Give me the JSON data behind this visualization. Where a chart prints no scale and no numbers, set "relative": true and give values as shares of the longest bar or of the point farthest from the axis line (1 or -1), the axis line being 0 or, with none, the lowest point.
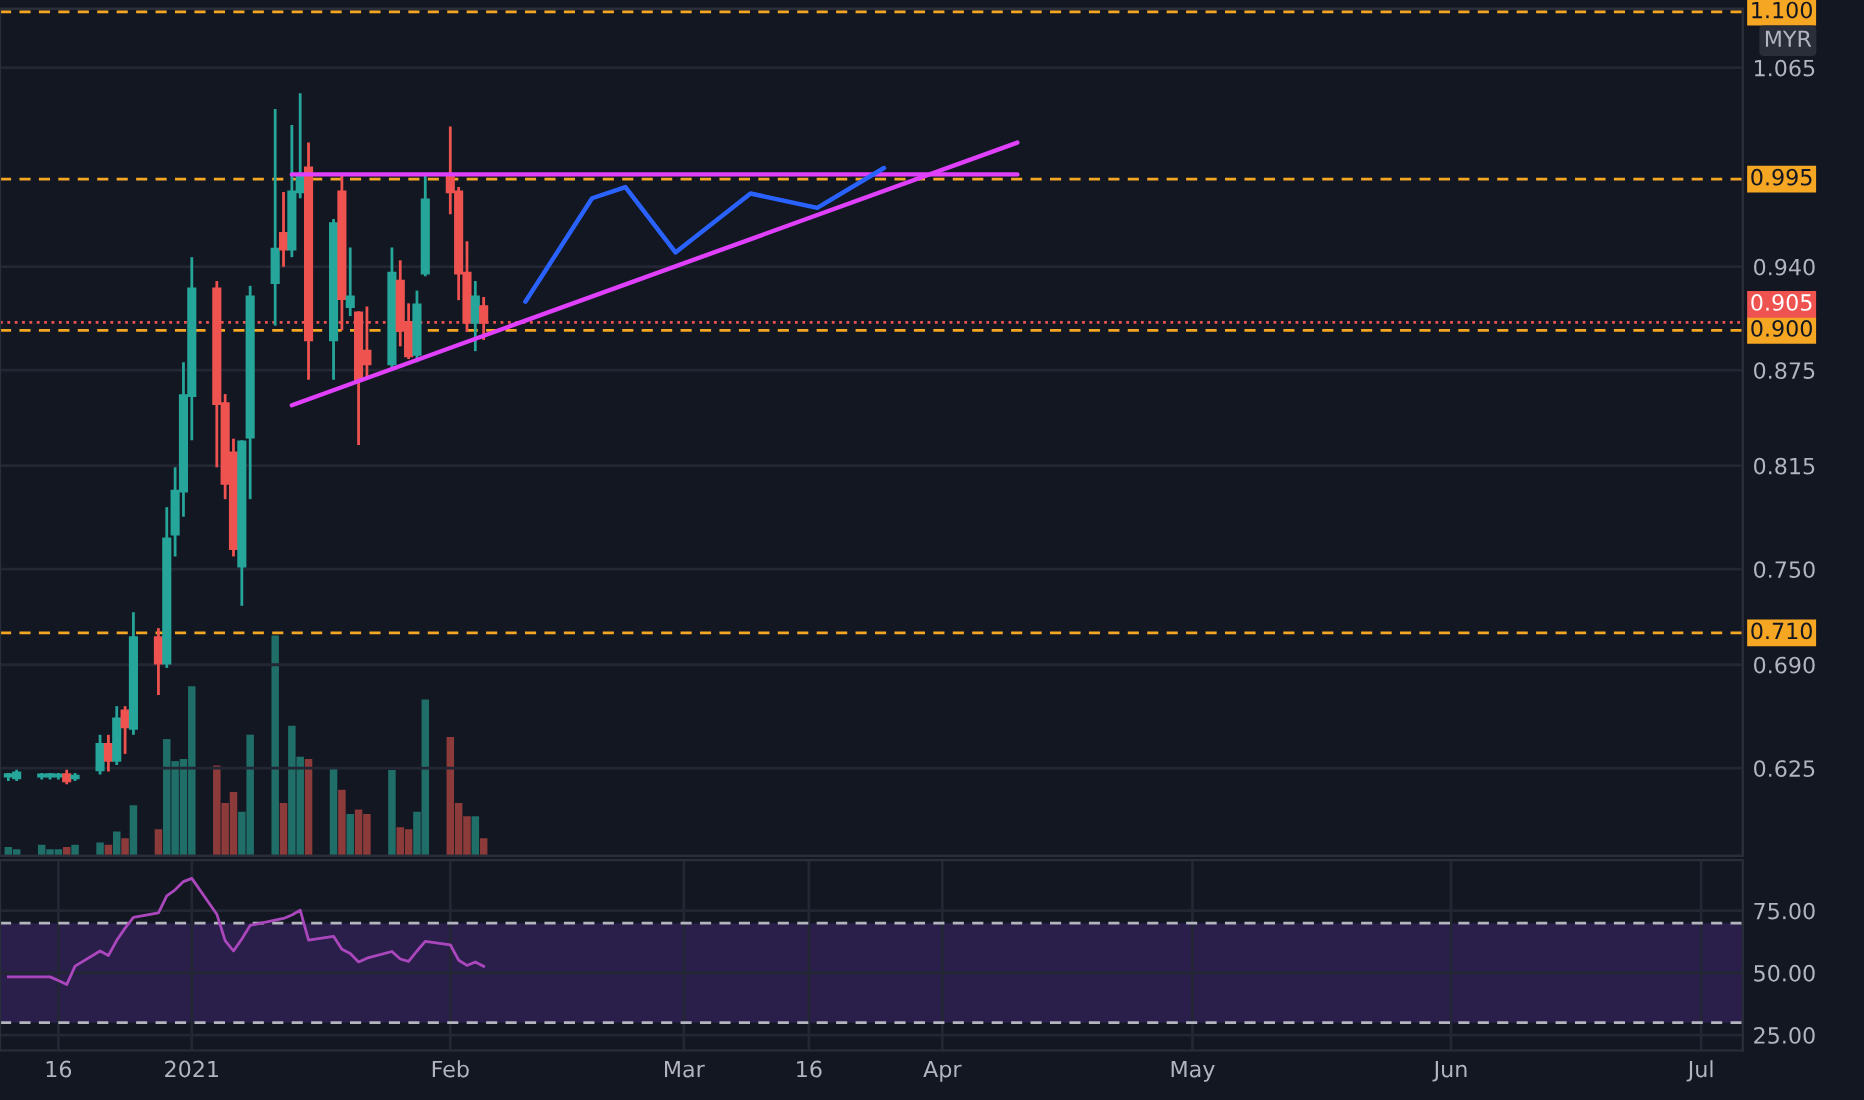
{
  "chart_data": [
    {
      "type": "candlestick",
      "annotations": [
        "MYR"
      ],
      "x": [
        "2020-12-10",
        "2020-12-11",
        "2020-12-14",
        "2020-12-15",
        "2020-12-16",
        "2020-12-17",
        "2020-12-18",
        "2020-12-21",
        "2020-12-22",
        "2020-12-23",
        "2020-12-24",
        "2020-12-25",
        "2020-12-28",
        "2020-12-29",
        "2020-12-30",
        "2020-12-31",
        "2021-01-01",
        "2021-01-04",
        "2021-01-05",
        "2021-01-06",
        "2021-01-07",
        "2021-01-08",
        "2021-01-11",
        "2021-01-12",
        "2021-01-13",
        "2021-01-14",
        "2021-01-15",
        "2021-01-18",
        "2021-01-19",
        "2021-01-20",
        "2021-01-21",
        "2021-01-22",
        "2021-01-25",
        "2021-01-26",
        "2021-01-27",
        "2021-01-28",
        "2021-01-29",
        "2021-02-01",
        "2021-02-02",
        "2021-02-03",
        "2021-02-04",
        "2021-02-05"
      ],
      "ohlc": [
        [
          0.62,
          0.622,
          0.617,
          0.621
        ],
        [
          0.619,
          0.624,
          0.617,
          0.622
        ],
        [
          0.62,
          0.622,
          0.618,
          0.62
        ],
        [
          0.62,
          0.622,
          0.618,
          0.621
        ],
        [
          0.62,
          0.622,
          0.618,
          0.62
        ],
        [
          0.621,
          0.624,
          0.615,
          0.617
        ],
        [
          0.619,
          0.622,
          0.617,
          0.62
        ],
        [
          0.624,
          0.646,
          0.621,
          0.64
        ],
        [
          0.64,
          0.646,
          0.623,
          0.63
        ],
        [
          0.63,
          0.664,
          0.627,
          0.656
        ],
        [
          0.661,
          0.664,
          0.634,
          0.651
        ],
        [
          0.65,
          0.723,
          0.646,
          0.707
        ],
        [
          0.707,
          0.713,
          0.671,
          0.691
        ],
        [
          0.691,
          0.789,
          0.688,
          0.769
        ],
        [
          0.772,
          0.814,
          0.758,
          0.799
        ],
        [
          0.799,
          0.88,
          0.783,
          0.859
        ],
        [
          0.859,
          0.946,
          0.831,
          0.926
        ],
        [
          0.926,
          0.931,
          0.814,
          0.854
        ],
        [
          0.854,
          0.86,
          0.794,
          0.804
        ],
        [
          0.823,
          0.832,
          0.758,
          0.763
        ],
        [
          0.752,
          0.831,
          0.727,
          0.83
        ],
        [
          0.833,
          0.928,
          0.794,
          0.921
        ],
        [
          0.93,
          1.039,
          0.903,
          0.951
        ],
        [
          0.961,
          0.987,
          0.94,
          0.951
        ],
        [
          0.951,
          1.029,
          0.946,
          0.987
        ],
        [
          0.987,
          1.049,
          0.983,
          0.997
        ],
        [
          1.002,
          1.018,
          0.869,
          0.894
        ],
        [
          0.894,
          0.97,
          0.869,
          0.967
        ],
        [
          0.987,
          0.998,
          0.9,
          0.92
        ],
        [
          0.915,
          0.952,
          0.909,
          0.921
        ],
        [
          0.911,
          0.912,
          0.828,
          0.869
        ],
        [
          0.887,
          0.915,
          0.869,
          0.879
        ],
        [
          0.879,
          0.952,
          0.876,
          0.936
        ],
        [
          0.931,
          0.944,
          0.89,
          0.9
        ],
        [
          0.905,
          0.917,
          0.882,
          0.884
        ],
        [
          0.885,
          0.925,
          0.88,
          0.916
        ],
        [
          0.936,
          0.998,
          0.934,
          0.982
        ],
        [
          0.997,
          1.028,
          0.973,
          0.987
        ],
        [
          0.987,
          0.99,
          0.919,
          0.936
        ],
        [
          0.936,
          0.956,
          0.899,
          0.905
        ],
        [
          0.905,
          0.931,
          0.887,
          0.921
        ],
        [
          0.915,
          0.921,
          0.894,
          0.905
        ]
      ],
      "colors": [
        "#26a69a",
        "#26a69a",
        "#26a69a",
        "#26a69a",
        "#26a69a",
        "#ef5350",
        "#26a69a",
        "#26a69a",
        "#ef5350",
        "#26a69a",
        "#ef5350",
        "#26a69a",
        "#ef5350",
        "#26a69a",
        "#26a69a",
        "#26a69a",
        "#26a69a",
        "#ef5350",
        "#ef5350",
        "#ef5350",
        "#26a69a",
        "#26a69a",
        "#26a69a",
        "#ef5350",
        "#26a69a",
        "#26a69a",
        "#ef5350",
        "#26a69a",
        "#ef5350",
        "#26a69a",
        "#ef5350",
        "#ef5350",
        "#26a69a",
        "#ef5350",
        "#ef5350",
        "#26a69a",
        "#26a69a",
        "#ef5350",
        "#ef5350",
        "#ef5350",
        "#26a69a",
        "#ef5350"
      ],
      "series": [
        {
          "type": "line",
          "color": "#e040fb",
          "x": [
            "2021-01-13",
            "2021-04-10"
          ],
          "values": [
            0.998,
            0.998
          ]
        },
        {
          "type": "line",
          "color": "#e040fb",
          "x": [
            "2021-01-13",
            "2021-04-10"
          ],
          "values": [
            0.853,
            1.018
          ]
        },
        {
          "type": "line",
          "color": "#2962ff",
          "x": [
            "2021-02-10",
            "2021-02-18",
            "2021-02-22",
            "2021-02-28",
            "2021-03-09",
            "2021-03-17",
            "2021-03-25"
          ],
          "values": [
            0.918,
            0.983,
            0.99,
            0.949,
            0.986,
            0.977,
            1.002
          ]
        }
      ],
      "ref_lines": [
        {
          "axis": "y",
          "value": 1.1,
          "label": "1.100",
          "color": "#f5a623",
          "line_style": "dashed"
        },
        {
          "axis": "y",
          "value": 0.995,
          "label": "0.995",
          "color": "#f5a623",
          "line_style": "dashed"
        },
        {
          "axis": "y",
          "value": 0.905,
          "label": "0.905",
          "color": "#ef5350",
          "line_style": "dotted"
        },
        {
          "axis": "y",
          "value": 0.9,
          "label": "0.900",
          "color": "#f5a623",
          "line_style": "dashed"
        },
        {
          "axis": "y",
          "value": 0.71,
          "label": "0.710",
          "color": "#f5a623",
          "line_style": "dashed"
        }
      ],
      "xlim": [
        "2020-12-09",
        "2021-07-06"
      ],
      "ylim": [
        0.57,
        1.102
      ],
      "yticks": [
        {
          "value": 0.625,
          "label": "0.625"
        },
        {
          "value": 0.69,
          "label": "0.690"
        },
        {
          "value": 0.75,
          "label": "0.750"
        },
        {
          "value": 0.815,
          "label": "0.815"
        },
        {
          "value": 0.875,
          "label": "0.875"
        },
        {
          "value": 0.94,
          "label": "0.940"
        },
        {
          "value": 1.065,
          "label": "1.065"
        }
      ],
      "grid": true,
      "tick_labels": "y"
    },
    {
      "type": "bar",
      "relative": true,
      "x": [
        "2020-12-10",
        "2020-12-11",
        "2020-12-14",
        "2020-12-15",
        "2020-12-16",
        "2020-12-17",
        "2020-12-18",
        "2020-12-21",
        "2020-12-22",
        "2020-12-23",
        "2020-12-24",
        "2020-12-25",
        "2020-12-28",
        "2020-12-29",
        "2020-12-30",
        "2020-12-31",
        "2021-01-01",
        "2021-01-04",
        "2021-01-05",
        "2021-01-06",
        "2021-01-07",
        "2021-01-08",
        "2021-01-11",
        "2021-01-12",
        "2021-01-13",
        "2021-01-14",
        "2021-01-15",
        "2021-01-18",
        "2021-01-19",
        "2021-01-20",
        "2021-01-21",
        "2021-01-22",
        "2021-01-25",
        "2021-01-26",
        "2021-01-27",
        "2021-01-28",
        "2021-01-29",
        "2021-02-01",
        "2021-02-02",
        "2021-02-03",
        "2021-02-04",
        "2021-02-05"
      ],
      "values": [
        0.04,
        0.03,
        0.05,
        0.03,
        0.03,
        0.04,
        0.05,
        0.06,
        0.05,
        0.11,
        0.08,
        0.23,
        0.12,
        0.53,
        0.43,
        0.44,
        0.77,
        0.41,
        0.24,
        0.29,
        0.2,
        0.55,
        1.0,
        0.24,
        0.59,
        0.45,
        0.44,
        0.4,
        0.3,
        0.19,
        0.21,
        0.19,
        0.39,
        0.13,
        0.12,
        0.2,
        0.71,
        0.54,
        0.24,
        0.18,
        0.18,
        0.08
      ],
      "colors": [
        "#1f6e68",
        "#1f6e68",
        "#1f6e68",
        "#1f6e68",
        "#1f6e68",
        "#8c3a3a",
        "#1f6e68",
        "#1f6e68",
        "#8c3a3a",
        "#1f6e68",
        "#8c3a3a",
        "#1f6e68",
        "#8c3a3a",
        "#1f6e68",
        "#1f6e68",
        "#1f6e68",
        "#1f6e68",
        "#8c3a3a",
        "#8c3a3a",
        "#8c3a3a",
        "#1f6e68",
        "#1f6e68",
        "#1f6e68",
        "#8c3a3a",
        "#1f6e68",
        "#1f6e68",
        "#8c3a3a",
        "#1f6e68",
        "#8c3a3a",
        "#1f6e68",
        "#8c3a3a",
        "#8c3a3a",
        "#1f6e68",
        "#8c3a3a",
        "#8c3a3a",
        "#1f6e68",
        "#1f6e68",
        "#8c3a3a",
        "#8c3a3a",
        "#8c3a3a",
        "#1f6e68",
        "#8c3a3a"
      ],
      "xlim": [
        "2020-12-09",
        "2021-07-06"
      ],
      "tick_labels": false
    },
    {
      "type": "line",
      "color": "#ab47bc",
      "x": [
        "2020-12-10",
        "2020-12-11",
        "2020-12-14",
        "2020-12-15",
        "2020-12-16",
        "2020-12-17",
        "2020-12-18",
        "2020-12-21",
        "2020-12-22",
        "2020-12-23",
        "2020-12-24",
        "2020-12-25",
        "2020-12-28",
        "2020-12-29",
        "2020-12-30",
        "2020-12-31",
        "2021-01-01",
        "2021-01-04",
        "2021-01-05",
        "2021-01-06",
        "2021-01-07",
        "2021-01-08",
        "2021-01-11",
        "2021-01-12",
        "2021-01-13",
        "2021-01-14",
        "2021-01-15",
        "2021-01-18",
        "2021-01-19",
        "2021-01-20",
        "2021-01-21",
        "2021-01-22",
        "2021-01-25",
        "2021-01-26",
        "2021-01-27",
        "2021-01-28",
        "2021-01-29",
        "2021-02-01",
        "2021-02-02",
        "2021-02-03",
        "2021-02-04",
        "2021-02-05"
      ],
      "values": [
        48.4,
        48.4,
        48.4,
        48.4,
        46.9,
        45.3,
        52.7,
        58.8,
        57.0,
        63.1,
        68.0,
        72.3,
        74.1,
        81.0,
        83.4,
        86.7,
        88.0,
        73.6,
        63.0,
        58.8,
        63.6,
        69.1,
        71.2,
        71.9,
        73.3,
        75.2,
        63.2,
        64.7,
        59.5,
        57.8,
        54.4,
        55.9,
        58.6,
        55.6,
        54.6,
        58.8,
        62.7,
        61.3,
        55.1,
        53.0,
        54.4,
        52.6
      ],
      "ref_lines": [
        {
          "axis": "y",
          "value": 70,
          "color": "#b2b5be",
          "line_style": "dashed"
        },
        {
          "axis": "y",
          "value": 30,
          "color": "#b2b5be",
          "line_style": "dashed"
        }
      ],
      "bands": [
        {
          "axis": "y",
          "from": 30,
          "to": 70,
          "color": "#2a1e4a"
        }
      ],
      "xlim": [
        "2020-12-09",
        "2021-07-06"
      ],
      "ylim": [
        18.8,
        95.3
      ],
      "xticks": [
        {
          "value": "2020-12-16",
          "label": "16"
        },
        {
          "value": "2021-01-01",
          "label": "2021"
        },
        {
          "value": "2021-02-01",
          "label": "Feb"
        },
        {
          "value": "2021-03-01",
          "label": "Mar"
        },
        {
          "value": "2021-03-16",
          "label": "16"
        },
        {
          "value": "2021-04-01",
          "label": "Apr"
        },
        {
          "value": "2021-05-01",
          "label": "May"
        },
        {
          "value": "2021-06-01",
          "label": "Jun"
        },
        {
          "value": "2021-07-01",
          "label": "Jul"
        }
      ],
      "yticks": [
        {
          "value": 25,
          "label": "25.00"
        },
        {
          "value": 50,
          "label": "50.00"
        },
        {
          "value": 75,
          "label": "75.00"
        }
      ],
      "grid": true
    }
  ]
}
